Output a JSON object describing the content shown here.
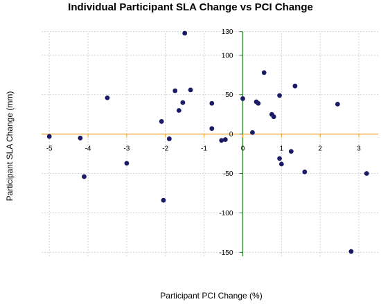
{
  "chart_data": {
    "type": "scatter",
    "title": "Individual Participant SLA Change vs PCI Change",
    "xlabel": "Participant PCI Change (%)",
    "ylabel": "Participant SLA Change (mm)",
    "xlim": [
      -5.2,
      3.5
    ],
    "ylim": [
      -155,
      135
    ],
    "xticks": [
      -5,
      -4,
      -3,
      -2,
      -1,
      0,
      1,
      2,
      3
    ],
    "yticks": [
      -150,
      -100,
      -50,
      0,
      50,
      100,
      130
    ],
    "grid": true,
    "point_color": "#1a1a66",
    "x_axis_line_color": "#f0a020",
    "y_axis_line_color": "#2e7d32",
    "points": [
      {
        "x": -5.0,
        "y": -3
      },
      {
        "x": -4.2,
        "y": -5
      },
      {
        "x": -4.1,
        "y": -54
      },
      {
        "x": -3.5,
        "y": 46
      },
      {
        "x": -3.0,
        "y": -37
      },
      {
        "x": -2.1,
        "y": 16
      },
      {
        "x": -2.05,
        "y": -84
      },
      {
        "x": -1.9,
        "y": -6
      },
      {
        "x": -1.75,
        "y": 55
      },
      {
        "x": -1.65,
        "y": 30
      },
      {
        "x": -1.55,
        "y": 40
      },
      {
        "x": -1.5,
        "y": 128
      },
      {
        "x": -1.35,
        "y": 56
      },
      {
        "x": -0.8,
        "y": 39
      },
      {
        "x": -0.8,
        "y": 7
      },
      {
        "x": -0.55,
        "y": -8
      },
      {
        "x": -0.45,
        "y": -7
      },
      {
        "x": 0.0,
        "y": 45
      },
      {
        "x": 0.25,
        "y": 2
      },
      {
        "x": 0.35,
        "y": 41
      },
      {
        "x": 0.4,
        "y": 39
      },
      {
        "x": 0.55,
        "y": 78
      },
      {
        "x": 0.75,
        "y": 25
      },
      {
        "x": 0.8,
        "y": 22
      },
      {
        "x": 0.95,
        "y": -31
      },
      {
        "x": 0.95,
        "y": 49
      },
      {
        "x": 1.0,
        "y": -38
      },
      {
        "x": 1.25,
        "y": -22
      },
      {
        "x": 1.35,
        "y": 61
      },
      {
        "x": 1.6,
        "y": -48
      },
      {
        "x": 2.45,
        "y": 38
      },
      {
        "x": 2.8,
        "y": -149
      },
      {
        "x": 3.2,
        "y": -50
      }
    ]
  }
}
